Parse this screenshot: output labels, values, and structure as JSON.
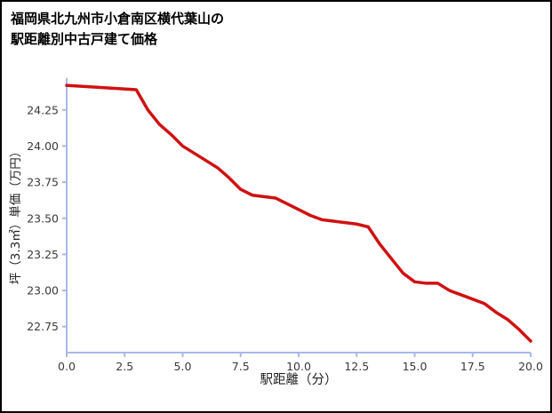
{
  "title": {
    "line1": "福岡県北九州市小倉南区横代葉山の",
    "line2": "駅距離別中古戸建て価格"
  },
  "chart_data": {
    "type": "line",
    "title": "福岡県北九州市小倉南区横代葉山の駅距離別中古戸建て価格",
    "xlabel": "駅距離（分）",
    "ylabel": "坪（3.3㎡）単価（万円）",
    "x": [
      0,
      1,
      2,
      3,
      3.5,
      4,
      4.5,
      5,
      5.5,
      6,
      6.5,
      7,
      7.5,
      8,
      8.5,
      9,
      9.5,
      10,
      10.5,
      11,
      11.5,
      12,
      12.5,
      13,
      13.5,
      14,
      14.5,
      15,
      15.5,
      16,
      16.5,
      17,
      17.5,
      18,
      18.5,
      19,
      19.5,
      20
    ],
    "values": [
      24.42,
      24.41,
      24.4,
      24.39,
      24.25,
      24.15,
      24.08,
      24.0,
      23.95,
      23.9,
      23.85,
      23.78,
      23.7,
      23.66,
      23.65,
      23.64,
      23.6,
      23.56,
      23.52,
      23.49,
      23.48,
      23.47,
      23.46,
      23.44,
      23.32,
      23.22,
      23.12,
      23.06,
      23.05,
      23.05,
      23.0,
      22.97,
      22.94,
      22.91,
      22.85,
      22.8,
      22.73,
      22.65
    ],
    "xlim": [
      0,
      20
    ],
    "ylim": [
      22.57,
      24.47
    ],
    "xticks": [
      0,
      2.5,
      5,
      7.5,
      10,
      12.5,
      15,
      17.5,
      20
    ],
    "xtick_labels": [
      "0.0",
      "2.5",
      "5.0",
      "7.5",
      "10.0",
      "12.5",
      "15.0",
      "17.5",
      "20.0"
    ],
    "yticks": [
      22.75,
      23.0,
      23.25,
      23.5,
      23.75,
      24.0,
      24.25
    ],
    "ytick_labels": [
      "22.75",
      "23.00",
      "23.25",
      "23.50",
      "23.75",
      "24.00",
      "24.25"
    ],
    "line_color": "#d01111",
    "axis_color": "#a9b8ea",
    "tick_label_color": "#3a3a3a",
    "grid": false
  }
}
